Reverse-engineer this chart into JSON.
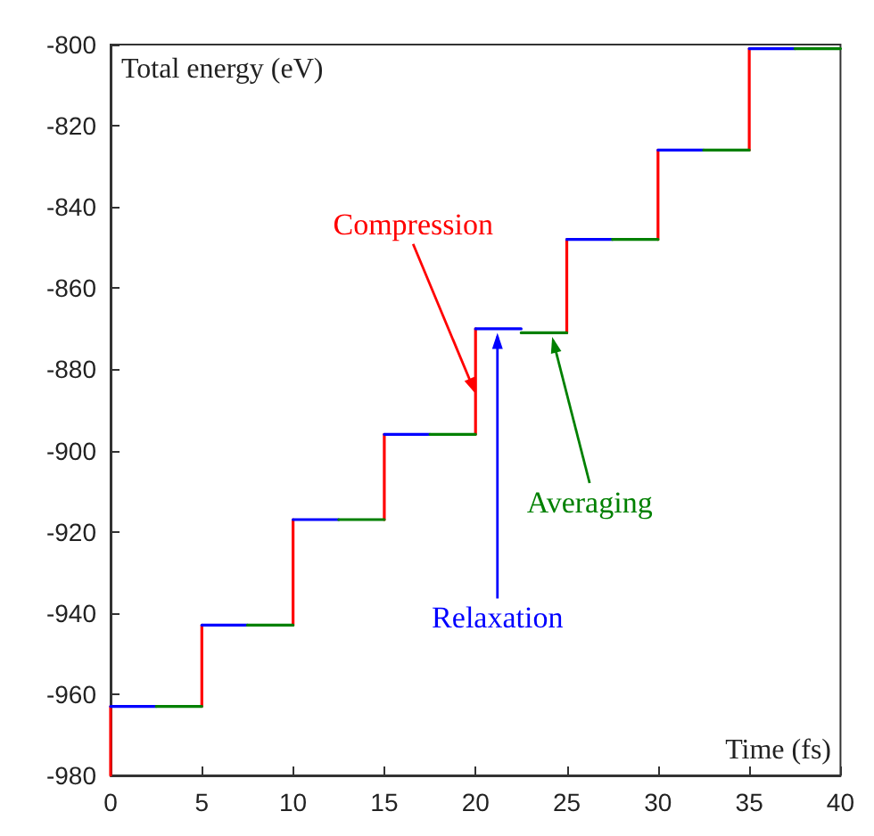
{
  "chart_data": {
    "type": "line",
    "xlabel": "Time (fs)",
    "ylabel": "Total energy (eV)",
    "xlim": [
      0,
      40
    ],
    "ylim": [
      -980,
      -800
    ],
    "xticks": [
      0,
      5,
      10,
      15,
      20,
      25,
      30,
      35,
      40
    ],
    "yticks": [
      -980,
      -960,
      -940,
      -920,
      -900,
      -880,
      -860,
      -840,
      -820,
      -800
    ],
    "grid": false,
    "marker": "none",
    "line_style": "solid",
    "series": [
      {
        "color": "#ff0000",
        "x": [
          0,
          0,
          null,
          5,
          5,
          null,
          10,
          10,
          null,
          15,
          15,
          null,
          20,
          20,
          null,
          25,
          25,
          null,
          30,
          30,
          null,
          35,
          35
        ],
        "values": [
          -980,
          -963,
          null,
          -963,
          -943,
          null,
          -943,
          -917,
          null,
          -917,
          -896,
          null,
          -896,
          -870,
          null,
          -871,
          -848,
          null,
          -848,
          -826,
          null,
          -826,
          -801
        ]
      },
      {
        "color": "#0000ff",
        "x": [
          0,
          2.5,
          null,
          5,
          7.5,
          null,
          10,
          12.5,
          null,
          15,
          17.5,
          null,
          20,
          22.5,
          null,
          25,
          27.5,
          null,
          30,
          32.5,
          null,
          35,
          37.5
        ],
        "values": [
          -963,
          -963,
          null,
          -943,
          -943,
          null,
          -917,
          -917,
          null,
          -896,
          -896,
          null,
          -870,
          -870,
          null,
          -848,
          -848,
          null,
          -826,
          -826,
          null,
          -801,
          -801
        ]
      },
      {
        "color": "#008000",
        "x": [
          2.5,
          5,
          null,
          7.5,
          10,
          null,
          12.5,
          15,
          null,
          17.5,
          20,
          null,
          22.5,
          25,
          null,
          27.5,
          30,
          null,
          32.5,
          35,
          null,
          37.5,
          40
        ],
        "values": [
          -963,
          -963,
          null,
          -943,
          -943,
          null,
          -917,
          -917,
          null,
          -896,
          -896,
          null,
          -871,
          -871,
          null,
          -848,
          -848,
          null,
          -826,
          -826,
          null,
          -801,
          -801
        ]
      }
    ],
    "annotations": [
      {
        "text": "Compression",
        "x": 20,
        "y": -886
      },
      {
        "text": "Relaxation",
        "x": 21.2,
        "y": -871
      },
      {
        "text": "Averaging",
        "x": 24.2,
        "y": -872
      }
    ]
  }
}
